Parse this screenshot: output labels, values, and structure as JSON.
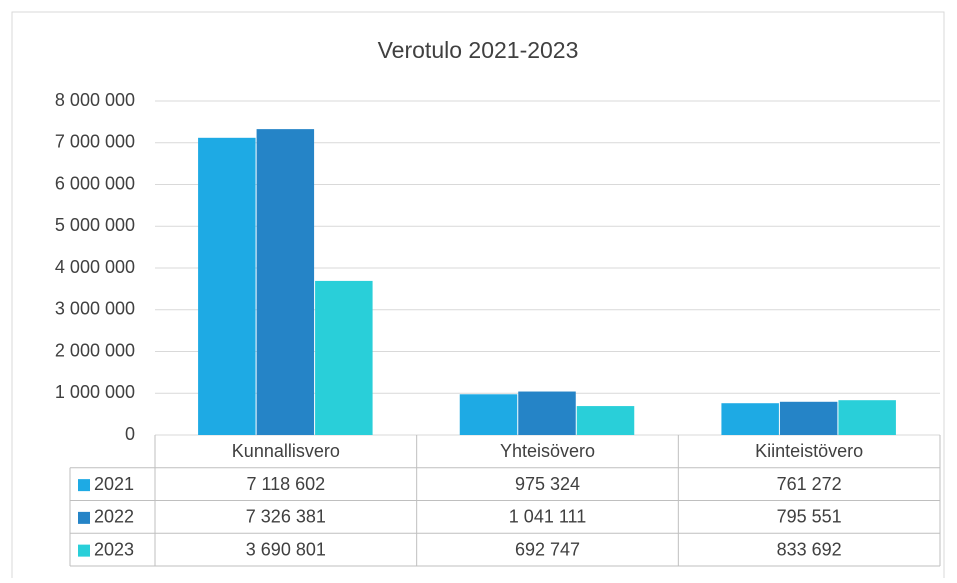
{
  "chart_data": {
    "type": "bar",
    "title": "Verotulo 2021-2023",
    "categories": [
      "Kunnallisvero",
      "Yhteisövero",
      "Kiinteistövero"
    ],
    "series": [
      {
        "name": "2021",
        "color": "#1eaae4",
        "values": [
          7118602,
          975324,
          761272
        ],
        "value_labels": [
          "7 118 602",
          "975 324",
          "761 272"
        ]
      },
      {
        "name": "2022",
        "color": "#2584c7",
        "values": [
          7326381,
          1041111,
          795551
        ],
        "value_labels": [
          "7 326 381",
          "1 041 111",
          "795 551"
        ]
      },
      {
        "name": "2023",
        "color": "#29cfd9",
        "values": [
          3690801,
          692747,
          833692
        ],
        "value_labels": [
          "3 690 801",
          "692 747",
          "833 692"
        ]
      }
    ],
    "ylim": [
      0,
      8000000
    ],
    "yticks": [
      0,
      {
        "value": 1000000,
        "label": "1 000 000"
      },
      {
        "value": 2000000,
        "label": "2 000 000"
      },
      {
        "value": 3000000,
        "label": "3 000 000"
      },
      {
        "value": 4000000,
        "label": "4 000 000"
      },
      {
        "value": 5000000,
        "label": "5 000 000"
      },
      {
        "value": 6000000,
        "label": "6 000 000"
      },
      {
        "value": 7000000,
        "label": "7 000 000"
      },
      {
        "value": 8000000,
        "label": "8 000 000"
      }
    ],
    "grid": true,
    "legend": "data-table"
  }
}
